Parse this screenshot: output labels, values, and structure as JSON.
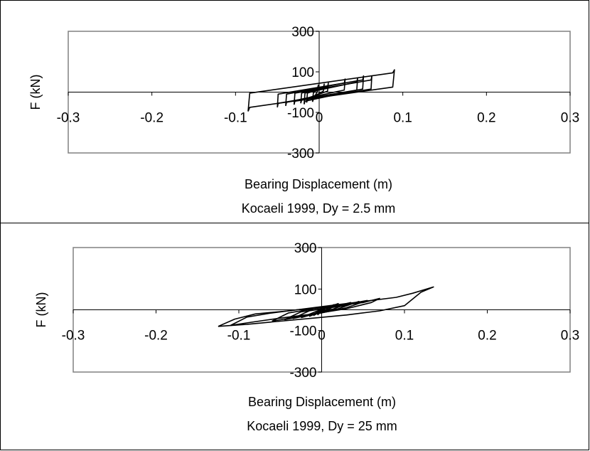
{
  "chart_data": [
    {
      "type": "line",
      "subtitle": "Kocaeli 1999, Dy = 2.5 mm",
      "xlabel": "Bearing Displacement (m)",
      "ylabel": "F (kN)",
      "xlim": [
        -0.3,
        0.3
      ],
      "ylim": [
        -300,
        300
      ],
      "x_ticks": [
        "-0.3",
        "-0.2",
        "-0.1",
        "0",
        "0.1",
        "0.2",
        "0.3"
      ],
      "y_ticks": [
        "300",
        "100",
        "-100",
        "-300"
      ],
      "grid": false,
      "series": [
        {
          "x": [
            -0.085,
            -0.083,
            0.088,
            0.09,
            0.088,
            -0.083,
            -0.085
          ],
          "y": [
            -95,
            -5,
            95,
            110,
            25,
            -75,
            -95
          ]
        },
        {
          "x": [
            -0.05,
            -0.049,
            0.052,
            0.053,
            0.052,
            -0.049,
            -0.05
          ],
          "y": [
            -75,
            -10,
            60,
            80,
            15,
            -55,
            -75
          ]
        },
        {
          "x": [
            -0.04,
            -0.039,
            0.03,
            0.031,
            0.03,
            -0.039,
            -0.04
          ],
          "y": [
            -68,
            -10,
            45,
            65,
            10,
            -50,
            -68
          ]
        },
        {
          "x": [
            -0.03,
            -0.029,
            0.062,
            0.063,
            0.062,
            -0.029,
            -0.03
          ],
          "y": [
            -62,
            -5,
            60,
            80,
            15,
            -45,
            -62
          ]
        },
        {
          "x": [
            -0.022,
            -0.021,
            0.01,
            0.011,
            0.01,
            -0.021,
            -0.022
          ],
          "y": [
            -55,
            -5,
            25,
            45,
            5,
            -40,
            -55
          ]
        },
        {
          "x": [
            -0.015,
            -0.014,
            0.005,
            0.006,
            0.005,
            -0.014,
            -0.015
          ],
          "y": [
            -52,
            -5,
            20,
            40,
            5,
            -38,
            -52
          ]
        },
        {
          "x": [
            -0.008,
            -0.007,
            -0.002,
            -0.001,
            -0.002,
            -0.007,
            -0.008
          ],
          "y": [
            -48,
            -5,
            15,
            35,
            5,
            -35,
            -48
          ]
        },
        {
          "x": [
            -0.018,
            -0.017,
            0.045,
            0.046,
            0.045,
            -0.017,
            -0.018
          ],
          "y": [
            -60,
            -5,
            50,
            70,
            10,
            -45,
            -60
          ]
        }
      ]
    },
    {
      "type": "line",
      "subtitle": "Kocaeli 1999, Dy = 25 mm",
      "xlabel": "Bearing Displacement (m)",
      "ylabel": "F (kN)",
      "xlim": [
        -0.3,
        0.3
      ],
      "ylim": [
        -300,
        300
      ],
      "x_ticks": [
        "-0.3",
        "-0.2",
        "-0.1",
        "0",
        "0.1",
        "0.2",
        "0.3"
      ],
      "y_ticks": [
        "300",
        "100",
        "-100",
        "-300"
      ],
      "grid": false,
      "series": [
        {
          "x": [
            -0.125,
            -0.105,
            -0.08,
            -0.04,
            0.0,
            0.05,
            0.09,
            0.11,
            0.135,
            0.12,
            0.1,
            0.07,
            0.03,
            -0.01,
            -0.05,
            -0.09,
            -0.125
          ],
          "y": [
            -80,
            -45,
            -20,
            -5,
            15,
            40,
            60,
            80,
            110,
            85,
            20,
            -5,
            -25,
            -40,
            -55,
            -70,
            -80
          ]
        },
        {
          "x": [
            -0.11,
            -0.09,
            -0.06,
            -0.03,
            0.01,
            0.05,
            0.07,
            0.06,
            0.03,
            -0.01,
            -0.05,
            -0.085,
            -0.11
          ],
          "y": [
            -75,
            -35,
            -15,
            0,
            15,
            35,
            55,
            35,
            5,
            -20,
            -40,
            -60,
            -75
          ]
        },
        {
          "x": [
            -0.06,
            -0.04,
            -0.01,
            0.02,
            0.055,
            0.03,
            0.0,
            -0.03,
            -0.06
          ],
          "y": [
            -55,
            -15,
            5,
            20,
            45,
            10,
            -15,
            -35,
            -55
          ]
        },
        {
          "x": [
            -0.045,
            -0.025,
            0.0,
            0.03,
            0.045,
            0.02,
            -0.01,
            -0.045
          ],
          "y": [
            -48,
            -10,
            5,
            20,
            40,
            5,
            -20,
            -48
          ]
        },
        {
          "x": [
            -0.035,
            -0.015,
            0.01,
            0.035,
            0.015,
            -0.01,
            -0.035
          ],
          "y": [
            -42,
            -5,
            10,
            35,
            5,
            -20,
            -42
          ]
        },
        {
          "x": [
            -0.025,
            -0.005,
            0.02,
            0.01,
            -0.005,
            -0.025
          ],
          "y": [
            -38,
            -5,
            30,
            5,
            -15,
            -38
          ]
        },
        {
          "x": [
            -0.015,
            0.0,
            0.015,
            0.005,
            -0.015
          ],
          "y": [
            -32,
            0,
            25,
            0,
            -32
          ]
        },
        {
          "x": [
            -0.01,
            0.0,
            0.01,
            0.0,
            -0.01
          ],
          "y": [
            -28,
            -5,
            20,
            0,
            -28
          ]
        },
        {
          "x": [
            -0.005,
            0.0,
            0.006,
            0.0,
            -0.005
          ],
          "y": [
            -25,
            -5,
            18,
            0,
            -25
          ]
        }
      ]
    }
  ]
}
